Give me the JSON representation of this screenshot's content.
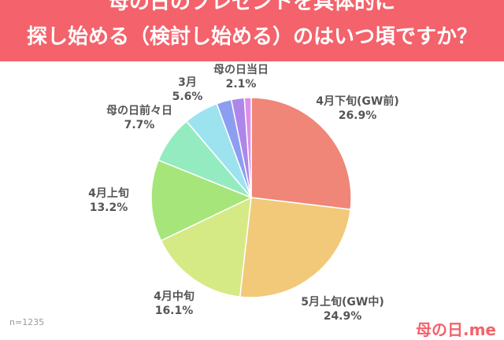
{
  "header": {
    "title_line1": "母の日のプレゼントを具体的に",
    "title_line2": "探し始める（検討し始める）のはいつ頃ですか？"
  },
  "chart_data": {
    "type": "pie",
    "slices": [
      {
        "label": "4月下旬(GW前)",
        "value": 26.9,
        "value_label": "26.9%",
        "color": "#ef8677"
      },
      {
        "label": "5月上旬(GW中)",
        "value": 24.9,
        "value_label": "24.9%",
        "color": "#f1c979"
      },
      {
        "label": "4月中旬",
        "value": 16.1,
        "value_label": "16.1%",
        "color": "#d5ea84"
      },
      {
        "label": "4月上旬",
        "value": 13.2,
        "value_label": "13.2%",
        "color": "#a6e57a"
      },
      {
        "label": "母の日前々日",
        "value": 7.7,
        "value_label": "7.7%",
        "color": "#94ebc0"
      },
      {
        "label": "3月",
        "value": 5.6,
        "value_label": "5.6%",
        "color": "#9ce3ef"
      },
      {
        "label": "",
        "value": 2.4,
        "value_label": "",
        "color": "#8b9ef0"
      },
      {
        "label": "母の日当日",
        "value": 2.1,
        "value_label": "2.1%",
        "color": "#ad86ea"
      },
      {
        "label": "",
        "value": 1.1,
        "value_label": "",
        "color": "#dd8fe6"
      }
    ]
  },
  "footer": {
    "sample": "n=1235",
    "brand": "母の日.me"
  },
  "colors": {
    "header_bg": "#f4626b",
    "label_text": "#555555"
  }
}
